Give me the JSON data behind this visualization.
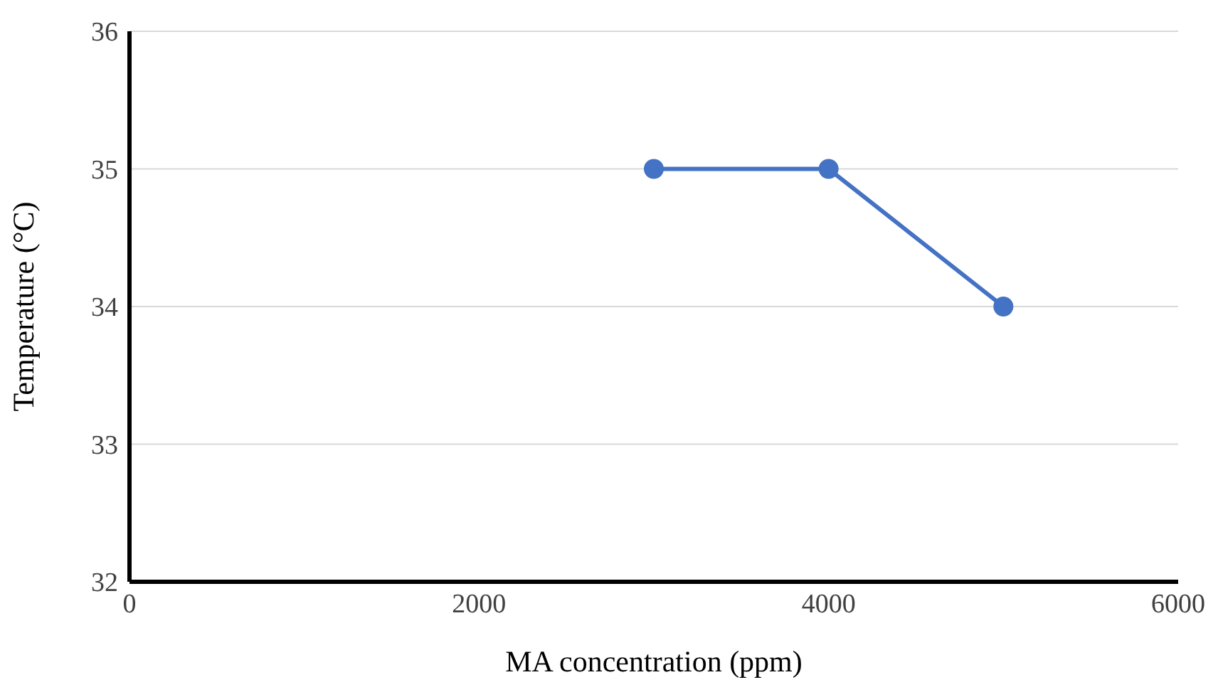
{
  "chart_data": {
    "type": "line",
    "xlabel": "MA concentration (ppm)",
    "ylabel": "Temperature (°C)",
    "x": [
      3000,
      4000,
      5000
    ],
    "series": [
      {
        "color": "#4472c4",
        "values": [
          35,
          35,
          34
        ]
      }
    ],
    "xlim": [
      0,
      6000
    ],
    "xticks": [
      0,
      2000,
      4000,
      6000
    ],
    "ylim": [
      32,
      36
    ],
    "yticks": [
      32,
      33,
      34,
      35,
      36
    ],
    "grid": "y",
    "legend": false,
    "marker": "circle",
    "line_style": "solid"
  }
}
